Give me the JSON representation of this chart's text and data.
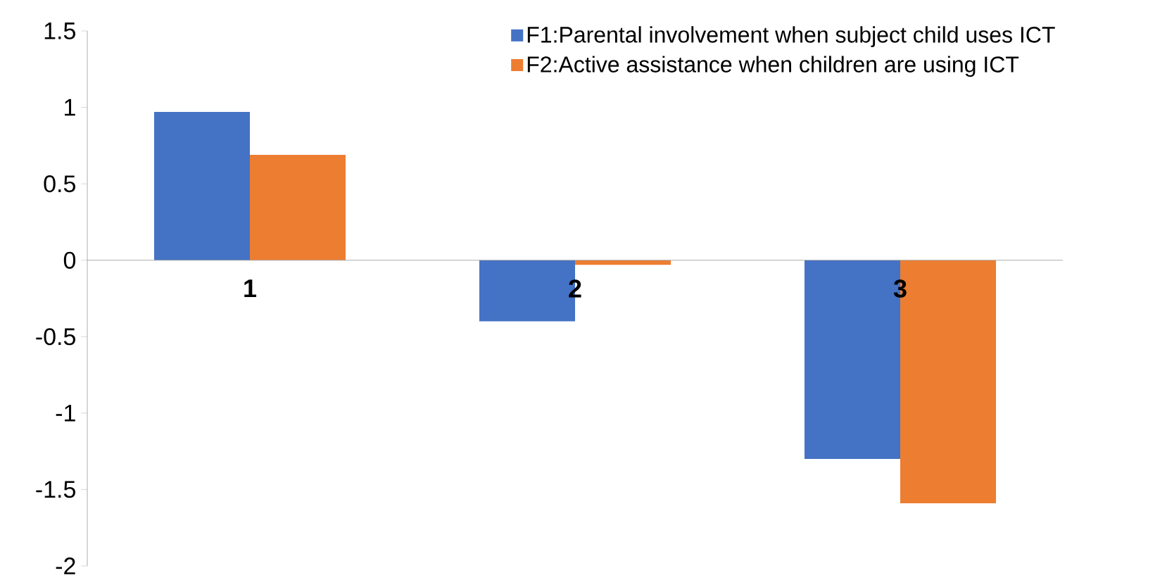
{
  "chart_data": {
    "type": "bar",
    "categories": [
      "1",
      "2",
      "3"
    ],
    "series": [
      {
        "name": "F1:Parental involvement when subject child uses ICT",
        "color": "#4472c4",
        "values": [
          0.97,
          -0.4,
          -1.3
        ]
      },
      {
        "name": "F2:Active assistance when children are using ICT",
        "color": "#ed7d31",
        "values": [
          0.69,
          -0.03,
          -1.59
        ]
      }
    ],
    "ylim": [
      -2,
      1.5
    ],
    "yticks": [
      -2,
      -1.5,
      -1,
      -0.5,
      0,
      0.5,
      1,
      1.5
    ],
    "legend": "top right"
  }
}
